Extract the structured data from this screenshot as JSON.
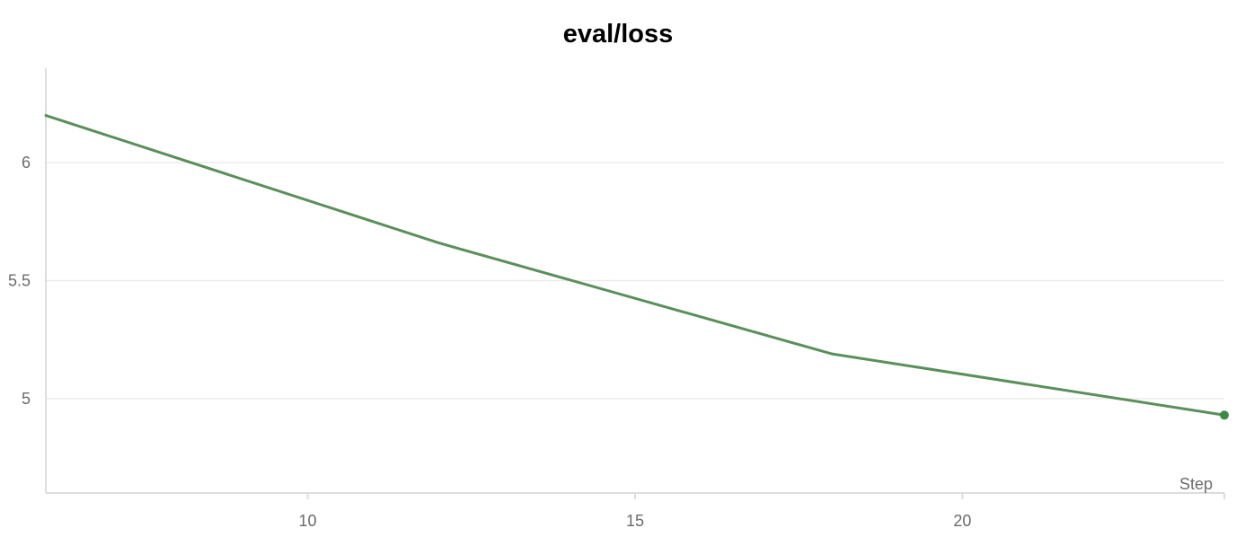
{
  "chart_data": {
    "type": "line",
    "title": "eval/loss",
    "xlabel": "Step",
    "ylabel": "",
    "xlim": [
      6,
      24
    ],
    "ylim": [
      4.6,
      6.4
    ],
    "x_ticks": [
      10,
      15,
      20
    ],
    "y_ticks": [
      5,
      5.5,
      6
    ],
    "x_tick_labels": [
      "10",
      "15",
      "20"
    ],
    "y_tick_labels": [
      "5",
      "5.5",
      "6"
    ],
    "grid": true,
    "legend": "none",
    "series": [
      {
        "color": "#5a8f5c",
        "marker_color": "#3d8a44",
        "x": [
          6,
          12,
          18,
          24
        ],
        "y": [
          6.2,
          5.66,
          5.19,
          4.93
        ]
      }
    ]
  }
}
